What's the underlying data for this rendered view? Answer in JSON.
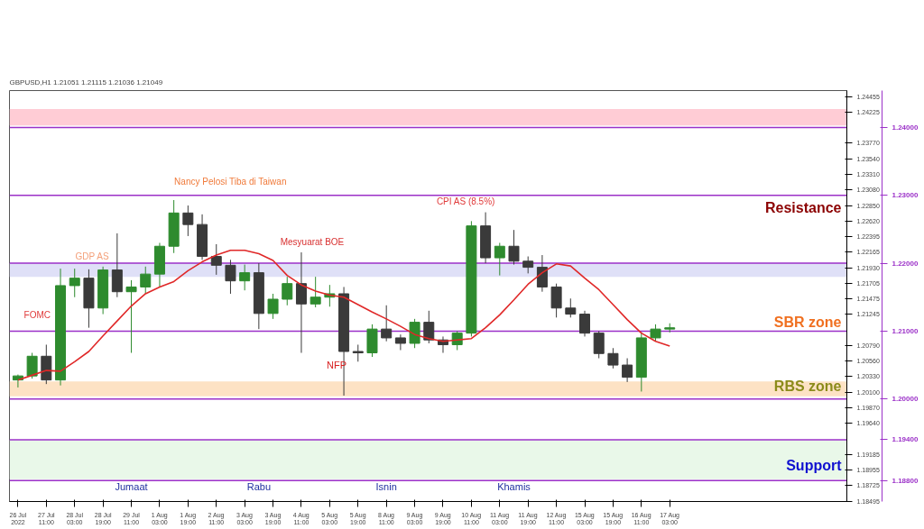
{
  "chart_data": {
    "type": "candlestick",
    "title": "GBPUSD,H1  1.21051 1.21115 1.21036 1.21049",
    "categories": [
      "26 Jul 2022",
      null,
      "27 Jul 11:00",
      null,
      "28 Jul 03:00",
      null,
      "28 Jul 19:00",
      null,
      "29 Jul 11:00",
      null,
      "1 Aug 03:00",
      null,
      "1 Aug 19:00",
      null,
      "2 Aug 11:00",
      null,
      "3 Aug 03:00",
      null,
      "3 Aug 19:00",
      null,
      "4 Aug 11:00",
      null,
      "5 Aug 03:00",
      null,
      "5 Aug 19:00",
      null,
      "8 Aug 11:00",
      null,
      "9 Aug 03:00",
      null,
      "9 Aug 19:00",
      null,
      "10 Aug 11:00",
      null,
      "11 Aug 03:00",
      null,
      "11 Aug 19:00",
      null,
      "12 Aug 11:00",
      null,
      "15 Aug 03:00",
      null,
      "15 Aug 19:00",
      null,
      "16 Aug 11:00",
      null,
      "17 Aug 03:00"
    ],
    "ohlc": [
      [
        1.2028,
        1.2036,
        1.2017,
        1.2034
      ],
      [
        1.2034,
        1.2068,
        1.203,
        1.2063
      ],
      [
        1.2063,
        1.208,
        1.2022,
        1.2028
      ],
      [
        1.2028,
        1.2192,
        1.202,
        1.2167
      ],
      [
        1.2167,
        1.2192,
        1.215,
        1.2178
      ],
      [
        1.2178,
        1.2191,
        1.2105,
        1.2134
      ],
      [
        1.2134,
        1.2195,
        1.2125,
        1.219
      ],
      [
        1.219,
        1.2244,
        1.215,
        1.2158
      ],
      [
        1.2158,
        1.2175,
        1.2068,
        1.2165
      ],
      [
        1.2165,
        1.2195,
        1.2155,
        1.2184
      ],
      [
        1.2184,
        1.223,
        1.2165,
        1.2225
      ],
      [
        1.2225,
        1.2293,
        1.2215,
        1.2274
      ],
      [
        1.2274,
        1.2285,
        1.224,
        1.2257
      ],
      [
        1.2257,
        1.2272,
        1.2205,
        1.221
      ],
      [
        1.221,
        1.2228,
        1.2183,
        1.2197
      ],
      [
        1.2197,
        1.2205,
        1.2155,
        1.2174
      ],
      [
        1.2174,
        1.2198,
        1.216,
        1.2186
      ],
      [
        1.2186,
        1.22,
        1.2103,
        1.2126
      ],
      [
        1.2126,
        1.2155,
        1.2118,
        1.2147
      ],
      [
        1.2147,
        1.218,
        1.2138,
        1.217
      ],
      [
        1.217,
        1.2216,
        1.2068,
        1.214
      ],
      [
        1.214,
        1.218,
        1.2135,
        1.215
      ],
      [
        1.215,
        1.2168,
        1.2136,
        1.2155
      ],
      [
        1.2155,
        1.2165,
        1.2005,
        1.207
      ],
      [
        1.207,
        1.208,
        1.2055,
        1.2068
      ],
      [
        1.2068,
        1.211,
        1.2062,
        1.2103
      ],
      [
        1.2103,
        1.2138,
        1.2085,
        1.209
      ],
      [
        1.209,
        1.2095,
        1.2072,
        1.2082
      ],
      [
        1.2082,
        1.2118,
        1.2075,
        1.2113
      ],
      [
        1.2113,
        1.213,
        1.2082,
        1.2087
      ],
      [
        1.2087,
        1.2092,
        1.2068,
        1.208
      ],
      [
        1.208,
        1.21,
        1.2072,
        1.2097
      ],
      [
        1.2097,
        1.2262,
        1.2092,
        1.2255
      ],
      [
        1.2255,
        1.2275,
        1.22,
        1.2208
      ],
      [
        1.2208,
        1.223,
        1.2182,
        1.2225
      ],
      [
        1.2225,
        1.2249,
        1.2198,
        1.2203
      ],
      [
        1.2203,
        1.221,
        1.2185,
        1.2194
      ],
      [
        1.2194,
        1.2212,
        1.2158,
        1.2165
      ],
      [
        1.2165,
        1.217,
        1.212,
        1.2134
      ],
      [
        1.2134,
        1.2148,
        1.212,
        1.2125
      ],
      [
        1.2125,
        1.213,
        1.2092,
        1.2097
      ],
      [
        1.2097,
        1.21,
        1.206,
        1.2067
      ],
      [
        1.2067,
        1.2075,
        1.2045,
        1.205
      ],
      [
        1.205,
        1.206,
        1.2025,
        1.2032
      ],
      [
        1.2032,
        1.2098,
        1.2011,
        1.209
      ],
      [
        1.209,
        1.211,
        1.2085,
        1.2103
      ],
      [
        1.2103,
        1.21115,
        1.2098,
        1.21049
      ]
    ],
    "colors": [
      "#2e8b2e",
      "#2e8b2e",
      "#3a3a3a",
      "#2e8b2e",
      "#2e8b2e",
      "#3a3a3a",
      "#2e8b2e",
      "#3a3a3a",
      "#2e8b2e",
      "#2e8b2e",
      "#2e8b2e",
      "#2e8b2e",
      "#3a3a3a",
      "#3a3a3a",
      "#3a3a3a",
      "#3a3a3a",
      "#2e8b2e",
      "#3a3a3a",
      "#2e8b2e",
      "#2e8b2e",
      "#3a3a3a",
      "#2e8b2e",
      "#2e8b2e",
      "#3a3a3a",
      "#3a3a3a",
      "#2e8b2e",
      "#3a3a3a",
      "#3a3a3a",
      "#2e8b2e",
      "#3a3a3a",
      "#3a3a3a",
      "#2e8b2e",
      "#2e8b2e",
      "#3a3a3a",
      "#2e8b2e",
      "#3a3a3a",
      "#3a3a3a",
      "#3a3a3a",
      "#3a3a3a",
      "#3a3a3a",
      "#3a3a3a",
      "#3a3a3a",
      "#3a3a3a",
      "#3a3a3a",
      "#2e8b2e",
      "#2e8b2e",
      "#2e8b2e"
    ],
    "series": [
      {
        "type": "line",
        "color": "#e02828",
        "values": [
          1.2028,
          1.2035,
          1.2042,
          1.2041,
          1.2055,
          1.207,
          1.2093,
          1.2115,
          1.2137,
          1.2155,
          1.2165,
          1.2173,
          1.2189,
          1.2202,
          1.2212,
          1.2219,
          1.2219,
          1.2214,
          1.2204,
          1.2182,
          1.2168,
          1.2159,
          1.2153,
          1.215,
          1.2139,
          1.2128,
          1.2118,
          1.2107,
          1.2095,
          1.2089,
          1.2085,
          1.2087,
          1.2089,
          1.2105,
          1.2124,
          1.2146,
          1.2169,
          1.2186,
          1.2199,
          1.2196,
          1.2178,
          1.2161,
          1.2139,
          1.2117,
          1.2097,
          1.2085,
          1.2078
        ]
      }
    ],
    "ylim": [
      1.1849,
      1.24543
    ],
    "yticks": [
      {
        "value": 1.24455,
        "label": "1.24455"
      },
      {
        "value": 1.24225,
        "label": "1.24225"
      },
      {
        "value": 1.2377,
        "label": "1.23770"
      },
      {
        "value": 1.2354,
        "label": "1.23540"
      },
      {
        "value": 1.2331,
        "label": "1.23310"
      },
      {
        "value": 1.2308,
        "label": "1.23080"
      },
      {
        "value": 1.2285,
        "label": "1.22850"
      },
      {
        "value": 1.2262,
        "label": "1.22620"
      },
      {
        "value": 1.22395,
        "label": "1.22395"
      },
      {
        "value": 1.22165,
        "label": "1.22165"
      },
      {
        "value": 1.2193,
        "label": "1.21930"
      },
      {
        "value": 1.21705,
        "label": "1.21705"
      },
      {
        "value": 1.21475,
        "label": "1.21475"
      },
      {
        "value": 1.21245,
        "label": "1.21245"
      },
      {
        "value": 1.2079,
        "label": "1.20790"
      },
      {
        "value": 1.2056,
        "label": "1.20560"
      },
      {
        "value": 1.2033,
        "label": "1.20330"
      },
      {
        "value": 1.201,
        "label": "1.20100"
      },
      {
        "value": 1.1987,
        "label": "1.19870"
      },
      {
        "value": 1.1964,
        "label": "1.19640"
      },
      {
        "value": 1.19185,
        "label": "1.19185"
      },
      {
        "value": 1.18955,
        "label": "1.18955"
      },
      {
        "value": 1.18725,
        "label": "1.18725"
      },
      {
        "value": 1.18495,
        "label": "1.18495"
      }
    ],
    "bands": [
      {
        "axis": "y",
        "from": 1.2403,
        "to": 1.2427,
        "color": "#ffccd5"
      },
      {
        "axis": "y",
        "from": 1.218,
        "to": 1.22,
        "color": "#dfe0f7"
      },
      {
        "axis": "y",
        "from": 1.2004,
        "to": 1.2026,
        "color": "#fde2c4"
      },
      {
        "axis": "y",
        "from": 1.1882,
        "to": 1.194,
        "color": "#e9f8e9"
      }
    ],
    "ref_lines": [
      {
        "axis": "y",
        "value": 1.24,
        "label": "1.24000",
        "color": "#9b30c8"
      },
      {
        "axis": "y",
        "value": 1.23,
        "label": "1.23000",
        "color": "#9b30c8"
      },
      {
        "axis": "y",
        "value": 1.22,
        "label": "1.22000",
        "color": "#9b30c8"
      },
      {
        "axis": "y",
        "value": 1.21,
        "label": "1.21000",
        "color": "#9b30c8"
      },
      {
        "axis": "y",
        "value": 1.2,
        "label": "1.20000",
        "color": "#9b30c8"
      },
      {
        "axis": "y",
        "value": 1.194,
        "label": "1.19400",
        "color": "#9b30c8"
      },
      {
        "axis": "y",
        "value": 1.188,
        "label": "1.18800",
        "color": "#9b30c8"
      }
    ],
    "annotations": [
      "FOMC",
      "GDP AS",
      "Nancy Pelosi Tiba di Taiwan",
      "Mesyuarat BOE",
      "NFP",
      "CPI AS (8.5%)",
      "Jumaat",
      "Rabu",
      "Isnin",
      "Khamis",
      "Resistance",
      "SBR zone",
      "RBS zone",
      "Support"
    ],
    "grid": false
  }
}
